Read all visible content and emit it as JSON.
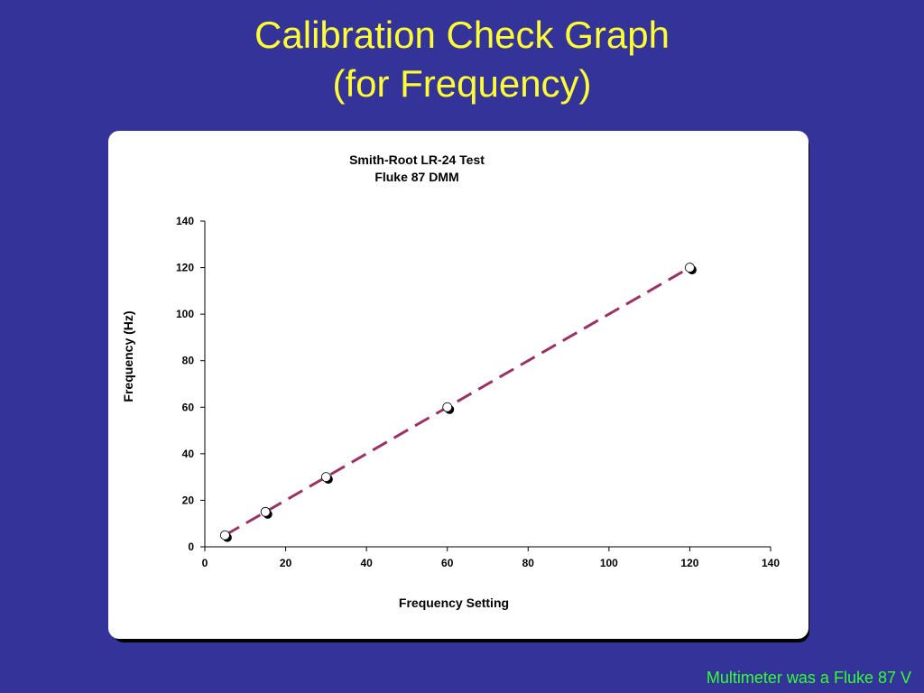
{
  "slide": {
    "title_line1": "Calibration Check Graph",
    "title_line2": "(for Frequency)",
    "footnote": "Multimeter was a Fluke 87 V"
  },
  "chart_data": {
    "type": "scatter",
    "title_line1": "Smith-Root LR-24 Test",
    "title_line2": "Fluke 87 DMM",
    "xlabel": "Frequency Setting",
    "ylabel": "Frequency (Hz)",
    "xlim": [
      0,
      140
    ],
    "ylim": [
      0,
      140
    ],
    "xticks": [
      "0",
      "20",
      "40",
      "60",
      "80",
      "100",
      "120",
      "140"
    ],
    "yticks": [
      "0",
      "20",
      "40",
      "60",
      "80",
      "100",
      "120",
      "140"
    ],
    "grid": false,
    "series": [
      {
        "x": [
          5,
          15,
          30,
          60,
          120
        ],
        "y": [
          5,
          15,
          30,
          60,
          120
        ]
      }
    ],
    "fit_line": {
      "x": [
        5,
        120
      ],
      "y": [
        5,
        120
      ],
      "style": "dashed",
      "color": "#993366"
    },
    "marker": {
      "fill": "#ffffff",
      "shadow": "#000000"
    }
  }
}
